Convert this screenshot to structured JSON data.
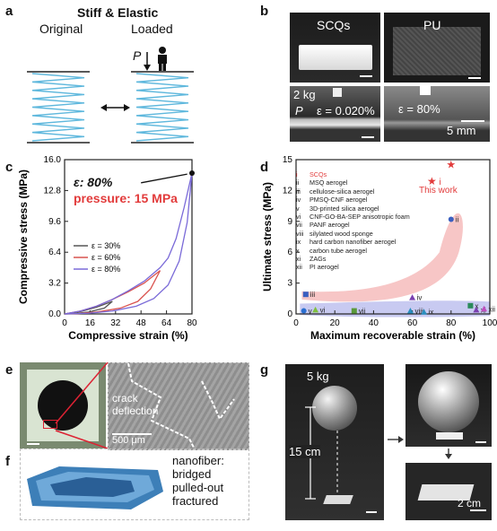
{
  "panels": {
    "a": {
      "label": "a",
      "title": "Stiff & Elastic",
      "original": "Original",
      "loaded": "Loaded",
      "load_symbol": "P",
      "spring_color": "#5fb8dd"
    },
    "b": {
      "label": "b",
      "scqs": "SCQs",
      "pu": "PU",
      "weight": "2 kg",
      "load_symbol": "P",
      "strain_scqs": "ε = 0.020%",
      "strain_pu": "ε = 80%",
      "scale": "5 mm"
    },
    "c": {
      "label": "c",
      "eps_annotation": "ε: 80%",
      "pressure_annotation": "pressure: 15 MPa",
      "accent": "#e23b3b"
    },
    "d": {
      "label": "d",
      "this_work": "This work",
      "this_work_label": "i",
      "legend": [
        {
          "num": "i",
          "name": "SCQs",
          "color": "#e23b3b"
        },
        {
          "num": "ii",
          "name": "MSQ aerogel",
          "color": "#222"
        },
        {
          "num": "iii",
          "name": "cellulose-silica aerogel",
          "color": "#222"
        },
        {
          "num": "iv",
          "name": "PMSQ-CNF aerogel",
          "color": "#222"
        },
        {
          "num": "v",
          "name": "3D-printed silica aerogel",
          "color": "#222"
        },
        {
          "num": "vi",
          "name": "CNF-GO-BA-SEP anisotropic foam",
          "color": "#222"
        },
        {
          "num": "vii",
          "name": "PANF aerogel",
          "color": "#222"
        },
        {
          "num": "viii",
          "name": "silylated wood sponge",
          "color": "#222"
        },
        {
          "num": "ix",
          "name": "hard carbon nanofiber aerogel",
          "color": "#222"
        },
        {
          "num": "x",
          "name": "carbon tube aerogel",
          "color": "#222"
        },
        {
          "num": "xi",
          "name": "ZAGs",
          "color": "#222"
        },
        {
          "num": "xii",
          "name": "PI aerogel",
          "color": "#222"
        }
      ]
    },
    "e": {
      "label": "e",
      "crack_text_1": "crack",
      "crack_text_2": "deflection",
      "scale": "500 μm"
    },
    "f": {
      "label": "f",
      "line1": "nanofiber:",
      "line2": "bridged",
      "line3": "pulled-out",
      "line4": "fractured"
    },
    "g": {
      "label": "g",
      "weight": "5 kg",
      "height": "15 cm",
      "scale": "2 cm"
    }
  },
  "chart_data": [
    {
      "type": "line",
      "panel": "c",
      "xlabel": "Compressive strain (%)",
      "ylabel": "Compressive stress (MPa)",
      "xlim": [
        0,
        80
      ],
      "ylim": [
        0,
        16
      ],
      "xticks": [
        "0",
        "16",
        "32",
        "48",
        "64",
        "80"
      ],
      "yticks": [
        "0.0",
        "3.2",
        "6.4",
        "9.6",
        "12.8",
        "16.0"
      ],
      "legend_position": "middle-left",
      "series": [
        {
          "name": "ε = 30%",
          "color": "#555555",
          "loading": [
            [
              0,
              0
            ],
            [
              10,
              0.25
            ],
            [
              20,
              0.7
            ],
            [
              30,
              1.3
            ]
          ],
          "unloading": [
            [
              30,
              1.3
            ],
            [
              25,
              0.6
            ],
            [
              15,
              0.2
            ],
            [
              5,
              0.02
            ],
            [
              0,
              0
            ]
          ]
        },
        {
          "name": "ε = 60%",
          "color": "#d9534f",
          "loading": [
            [
              0,
              0
            ],
            [
              10,
              0.3
            ],
            [
              20,
              0.8
            ],
            [
              30,
              1.5
            ],
            [
              40,
              2.3
            ],
            [
              50,
              3.2
            ],
            [
              60,
              4.5
            ]
          ],
          "unloading": [
            [
              60,
              4.5
            ],
            [
              54,
              2.6
            ],
            [
              46,
              1.3
            ],
            [
              35,
              0.6
            ],
            [
              20,
              0.2
            ],
            [
              8,
              0.03
            ],
            [
              0,
              0
            ]
          ]
        },
        {
          "name": "ε = 80%",
          "color": "#7a6ad8",
          "loading": [
            [
              0,
              0
            ],
            [
              10,
              0.3
            ],
            [
              20,
              0.8
            ],
            [
              30,
              1.5
            ],
            [
              40,
              2.4
            ],
            [
              50,
              3.4
            ],
            [
              60,
              4.8
            ],
            [
              65,
              5.8
            ],
            [
              70,
              7.8
            ],
            [
              75,
              11.0
            ],
            [
              80,
              14.6
            ]
          ],
          "unloading": [
            [
              80,
              14.6
            ],
            [
              77,
              9.5
            ],
            [
              72,
              5.5
            ],
            [
              65,
              3.0
            ],
            [
              56,
              1.6
            ],
            [
              45,
              0.8
            ],
            [
              30,
              0.3
            ],
            [
              15,
              0.07
            ],
            [
              0,
              0
            ]
          ]
        }
      ],
      "annotations": [
        "ε: 80%",
        "pressure: 15 MPa"
      ]
    },
    {
      "type": "scatter",
      "panel": "d",
      "xlabel": "Maximum recoverable strain (%)",
      "ylabel": "Ultimate stress (MPa)",
      "xlim": [
        0,
        100
      ],
      "ylim": [
        0,
        15
      ],
      "xticks": [
        "0",
        "20",
        "40",
        "60",
        "80",
        "100"
      ],
      "yticks": [
        "0",
        "3",
        "6",
        "9",
        "12",
        "15"
      ],
      "points": [
        {
          "label": "i",
          "x": 80,
          "y": 14.5,
          "color": "#e23b3b",
          "marker": "star"
        },
        {
          "label": "ii",
          "x": 80,
          "y": 9.2,
          "color": "#3b5fc0",
          "marker": "circle"
        },
        {
          "label": "iii",
          "x": 5,
          "y": 1.9,
          "color": "#3b5fc0",
          "marker": "square"
        },
        {
          "label": "iv",
          "x": 60,
          "y": 1.6,
          "color": "#7a3fb0",
          "marker": "triangle"
        },
        {
          "label": "v",
          "x": 4,
          "y": 0.3,
          "color": "#2a6fd0",
          "marker": "circle"
        },
        {
          "label": "vi",
          "x": 10,
          "y": 0.4,
          "color": "#7fbf3f",
          "marker": "triangle"
        },
        {
          "label": "vii",
          "x": 30,
          "y": 0.3,
          "color": "#5a9a3a",
          "marker": "square"
        },
        {
          "label": "viii",
          "x": 59,
          "y": 0.3,
          "color": "#2a8fc0",
          "marker": "triangle"
        },
        {
          "label": "ix",
          "x": 66,
          "y": 0.2,
          "color": "#2a8fc0",
          "marker": "triangle"
        },
        {
          "label": "x",
          "x": 90,
          "y": 0.8,
          "color": "#2a8a5a",
          "marker": "square"
        },
        {
          "label": "xi",
          "x": 93,
          "y": 0.4,
          "color": "#7a3fb0",
          "marker": "triangle"
        },
        {
          "label": "xii",
          "x": 97,
          "y": 0.5,
          "color": "#c04fc0",
          "marker": "triangle"
        }
      ]
    }
  ]
}
